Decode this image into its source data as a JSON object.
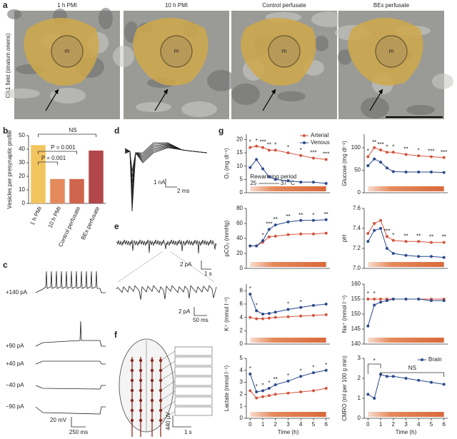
{
  "panel_labels": [
    "a",
    "b",
    "c",
    "d",
    "e",
    "f",
    "g"
  ],
  "panel_a": {
    "side_label": "CA1 field (stratum oriens)",
    "images": [
      "1 h PMI",
      "10 h PMI",
      "Control perfusate",
      "BEx perfusate"
    ],
    "marker": "m"
  },
  "panel_c": {
    "labels": [
      "+140 pA",
      "+90 pA",
      "+40 pA",
      "−40 pA",
      "−90 pA"
    ],
    "scale_y": "20 mV",
    "scale_x": "250 ms"
  },
  "panel_d": {
    "scale_y": "1 nA",
    "scale_x": "2 ms"
  },
  "panel_e": {
    "scale_y": "2 pA",
    "scale_x": "1 s",
    "inset_scale_y": "2 pA",
    "inset_scale_x": "50 ms"
  },
  "panel_f": {
    "scale_y": "440 µV",
    "scale_x": "1 s"
  },
  "chart_data": [
    {
      "type": "bar",
      "ylabel": "Vesicles per presynaptic profile",
      "categories": [
        "1 h PMI",
        "10 h PMI",
        "Control perfusate",
        "BEx perfusate"
      ],
      "values": [
        43,
        18,
        18,
        39
      ],
      "colors": [
        "#f2c45e",
        "#e48a5c",
        "#d0654d",
        "#b2484a"
      ],
      "ylim": [
        0,
        50
      ],
      "yticks": [
        0,
        10,
        20,
        30,
        40,
        50
      ],
      "annotations": [
        "NS",
        "P = 0.001",
        "P = 0.001"
      ]
    },
    {
      "type": "line",
      "ylabel": "O₂ (mg dl⁻¹)",
      "x": [
        0,
        0.5,
        1,
        1.5,
        2,
        3,
        4,
        5,
        6
      ],
      "xlim": [
        -0.3,
        6.3
      ],
      "ylim": [
        0,
        22
      ],
      "yticks": [
        0,
        5,
        10,
        15,
        20
      ],
      "legend": true,
      "series": [
        {
          "name": "Arterial",
          "color": "#d2553f",
          "values": [
            17,
            17.5,
            17,
            16,
            16,
            15,
            14,
            13,
            12.5
          ]
        },
        {
          "name": "Venous",
          "color": "#2c4a8c",
          "values": [
            9.5,
            12.5,
            9,
            6,
            5,
            4.5,
            4,
            4,
            3.5
          ]
        }
      ],
      "significance": [
        "*",
        "*",
        "***",
        "**",
        "*",
        "*",
        "*",
        "***",
        "***"
      ],
      "rewarming_label": "Rewarming period",
      "temp_start": "25",
      "temp_end": "37 °C"
    },
    {
      "type": "line",
      "ylabel": "Glucose (mg dl⁻¹)",
      "x": [
        0,
        0.5,
        1,
        1.5,
        2,
        3,
        4,
        5,
        6
      ],
      "xlim": [
        -0.3,
        6.3
      ],
      "ylim": [
        0,
        130
      ],
      "yticks": [
        0,
        50,
        100
      ],
      "series": [
        {
          "color": "#d2553f",
          "values": [
            80,
            100,
            95,
            90,
            90,
            85,
            82,
            80,
            78
          ]
        },
        {
          "color": "#2c4a8c",
          "values": [
            60,
            75,
            68,
            55,
            47,
            46,
            46,
            46,
            45
          ]
        }
      ],
      "significance": [
        "*",
        "**",
        "***",
        "*",
        "*",
        "**",
        "*",
        "***",
        "***"
      ]
    },
    {
      "type": "line",
      "ylabel": "pCO₂ (mmHg)",
      "x": [
        0,
        0.5,
        1,
        1.5,
        2,
        3,
        4,
        5,
        6
      ],
      "xlim": [
        -0.3,
        6.3
      ],
      "ylim": [
        0,
        80
      ],
      "yticks": [
        0,
        20,
        40,
        60,
        80
      ],
      "series": [
        {
          "color": "#d2553f",
          "values": [
            30,
            30,
            35,
            42,
            43,
            45,
            46,
            46,
            47
          ]
        },
        {
          "color": "#2c4a8c",
          "values": [
            30,
            30,
            37,
            52,
            58,
            62,
            64,
            64,
            65
          ]
        }
      ],
      "significance": [
        null,
        null,
        "*",
        "***",
        "**",
        "**",
        "**",
        "*",
        "**"
      ]
    },
    {
      "type": "line",
      "ylabel": "pH",
      "x": [
        0,
        0.5,
        1,
        1.5,
        2,
        3,
        4,
        5,
        6
      ],
      "xlim": [
        -0.3,
        6.3
      ],
      "ylim": [
        7.0,
        7.6
      ],
      "yticks": [
        {
          "value": 7,
          "label": "7.0"
        },
        7.2,
        7.4,
        7.6
      ],
      "series": [
        {
          "color": "#d2553f",
          "values": [
            7.35,
            7.45,
            7.48,
            7.32,
            7.28,
            7.27,
            7.27,
            7.26,
            7.26
          ]
        },
        {
          "color": "#2c4a8c",
          "values": [
            7.27,
            7.38,
            7.4,
            7.2,
            7.15,
            7.13,
            7.12,
            7.12,
            7.11
          ]
        }
      ],
      "significance": [
        null,
        null,
        null,
        "***",
        "*",
        "**",
        "**",
        "**",
        "**"
      ]
    },
    {
      "type": "line",
      "ylabel": "K⁺ (mmol l⁻¹)",
      "x": [
        0,
        0.5,
        1,
        1.5,
        2,
        3,
        4,
        5,
        6
      ],
      "xlim": [
        -0.3,
        6.3
      ],
      "ylim": [
        0,
        9
      ],
      "yticks": [
        0,
        2,
        4,
        6,
        8
      ],
      "series": [
        {
          "color": "#d2553f",
          "values": [
            4,
            3.8,
            3.8,
            3.9,
            4,
            4.1,
            4.2,
            4.3,
            4.4
          ]
        },
        {
          "color": "#2c4a8c",
          "values": [
            7.5,
            5,
            4.5,
            4.6,
            4.8,
            5.2,
            5.5,
            5.8,
            6
          ]
        }
      ],
      "significance": [
        "*",
        "*",
        null,
        null,
        null,
        "*",
        "*",
        null,
        null
      ]
    },
    {
      "type": "line",
      "ylabel": "Na⁺ (mmol l⁻¹)",
      "x": [
        0,
        0.5,
        1,
        1.5,
        2,
        3,
        4,
        5,
        6
      ],
      "xlim": [
        -0.3,
        6.3
      ],
      "ylim": [
        140,
        160
      ],
      "yticks": [
        140,
        145,
        150,
        155,
        160
      ],
      "series": [
        {
          "color": "#d2553f",
          "values": [
            155,
            155,
            155,
            155,
            155,
            155,
            155,
            155,
            155
          ]
        },
        {
          "color": "#2c4a8c",
          "values": [
            146,
            153,
            154,
            154.5,
            155,
            155,
            155,
            154.5,
            154.5
          ]
        }
      ],
      "significance": [
        "*",
        "*",
        null,
        null,
        null,
        null,
        null,
        null,
        null
      ]
    },
    {
      "type": "line",
      "ylabel": "Lactate (mmol l⁻¹)",
      "xlabel": "Time (h)",
      "x": [
        0,
        0.5,
        1,
        1.5,
        2,
        3,
        4,
        5,
        6
      ],
      "xlim": [
        -0.3,
        6.3
      ],
      "xticks": [
        0,
        1,
        2,
        3,
        4,
        5,
        6
      ],
      "ylim": [
        0,
        5
      ],
      "yticks": [
        0,
        1,
        2,
        3,
        4,
        5
      ],
      "series": [
        {
          "color": "#d2553f",
          "values": [
            2.3,
            1.7,
            1.8,
            1.9,
            2,
            2.1,
            2.2,
            2.3,
            2.5
          ]
        },
        {
          "color": "#2c4a8c",
          "values": [
            3.7,
            2.2,
            2.3,
            2.5,
            2.8,
            3.1,
            3.5,
            3.8,
            4
          ]
        }
      ],
      "significance": [
        "*",
        "*",
        "*",
        "*",
        "**",
        "*",
        "*",
        "*",
        "*"
      ]
    },
    {
      "type": "line",
      "ylabel": "CMRO (ml per 100 g min)",
      "xlabel": "Time (h)",
      "x": [
        0,
        0.5,
        1,
        1.5,
        2,
        3,
        4,
        5,
        6
      ],
      "xlim": [
        -0.3,
        6.3
      ],
      "xticks": [
        0,
        1,
        2,
        3,
        4,
        5,
        6
      ],
      "ylim": [
        0,
        3
      ],
      "yticks": [
        0,
        1,
        2,
        3
      ],
      "legend": true,
      "series": [
        {
          "name": "Brain",
          "color": "#2c4a8c",
          "values": [
            1.2,
            1.0,
            2.2,
            2.1,
            2.1,
            2.0,
            1.9,
            1.8,
            1.7
          ]
        }
      ],
      "annotations": [
        "*",
        "NS"
      ]
    }
  ]
}
